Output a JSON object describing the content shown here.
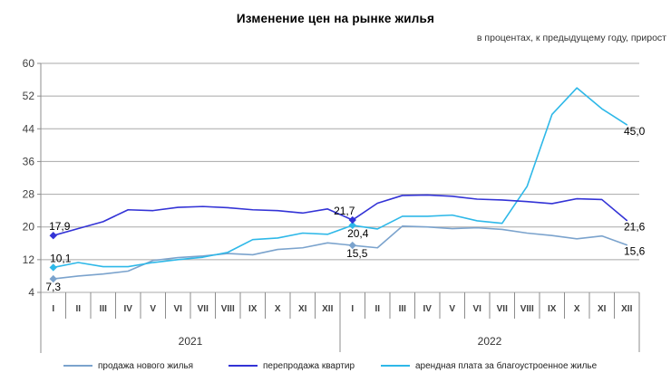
{
  "title": "Изменение цен на рынке жилья",
  "subtitle": "в процентах, к предыдущему году, прирост",
  "chart_data": {
    "type": "line",
    "title": "Изменение цен на рынке жилья",
    "subtitle": "в процентах, к предыдущему году, прирост",
    "month_labels": [
      "I",
      "II",
      "III",
      "IV",
      "V",
      "VI",
      "VII",
      "VIII",
      "IX",
      "X",
      "XI",
      "XII",
      "I",
      "II",
      "III",
      "IV",
      "V",
      "VI",
      "VII",
      "VIII",
      "IX",
      "X",
      "XI",
      "XII"
    ],
    "year_groups": [
      {
        "label": "2021",
        "span": 12
      },
      {
        "label": "2022",
        "span": 12
      }
    ],
    "ylim": [
      4,
      60
    ],
    "yticks": [
      60,
      52,
      44,
      36,
      28,
      20,
      12,
      4
    ],
    "grid": true,
    "legend_position": "bottom",
    "colors": {
      "grid": "#a8a8a8",
      "axis": "#8c8c8c",
      "tick_text": "#404040",
      "data_label_text": "#000000"
    },
    "series": [
      {
        "name": "продажа нового  жилья",
        "color": "#7ba3cd",
        "values": [
          7.3,
          8.0,
          8.5,
          9.2,
          11.8,
          12.5,
          12.9,
          13.5,
          13.2,
          14.5,
          14.9,
          16.1,
          15.5,
          14.9,
          20.2,
          20.0,
          19.6,
          19.8,
          19.4,
          18.5,
          17.9,
          17.1,
          17.8,
          15.6
        ],
        "markers": [
          0,
          12
        ],
        "point_labels": [
          {
            "index": 0,
            "text": "7,3",
            "pos": "below",
            "dx": 0
          },
          {
            "index": 12,
            "text": "15,5",
            "pos": "below",
            "dx": 5
          },
          {
            "index": 23,
            "text": "15,6",
            "pos": "end",
            "dx": 0
          }
        ]
      },
      {
        "name": "перепродажа квартир",
        "color": "#3333d6",
        "values": [
          17.9,
          19.6,
          21.3,
          24.2,
          24.0,
          24.8,
          25.0,
          24.7,
          24.2,
          24.0,
          23.4,
          24.4,
          21.7,
          25.8,
          27.7,
          27.8,
          27.5,
          26.8,
          26.6,
          26.2,
          25.7,
          26.9,
          26.7,
          21.6
        ],
        "markers": [
          0,
          12
        ],
        "point_labels": [
          {
            "index": 0,
            "text": "17,9",
            "pos": "above",
            "dx": 7
          },
          {
            "index": 12,
            "text": "21,7",
            "pos": "above",
            "dx": -9
          },
          {
            "index": 23,
            "text": "21,6",
            "pos": "end",
            "dx": 0
          }
        ]
      },
      {
        "name": "арендная плата за благоустроенное  жилье",
        "color": "#2eb8e8",
        "values": [
          10.1,
          11.3,
          10.3,
          10.3,
          11.3,
          12.0,
          12.6,
          13.8,
          16.9,
          17.3,
          18.5,
          18.2,
          20.4,
          19.5,
          22.6,
          22.6,
          22.9,
          21.5,
          20.9,
          29.9,
          47.5,
          54.0,
          48.9,
          45.0
        ],
        "markers": [
          0,
          12
        ],
        "point_labels": [
          {
            "index": 0,
            "text": "10,1",
            "pos": "above",
            "dx": 8
          },
          {
            "index": 12,
            "text": "20,4",
            "pos": "below",
            "dx": 6
          },
          {
            "index": 23,
            "text": "45,0",
            "pos": "end",
            "dx": 0
          }
        ]
      }
    ]
  }
}
